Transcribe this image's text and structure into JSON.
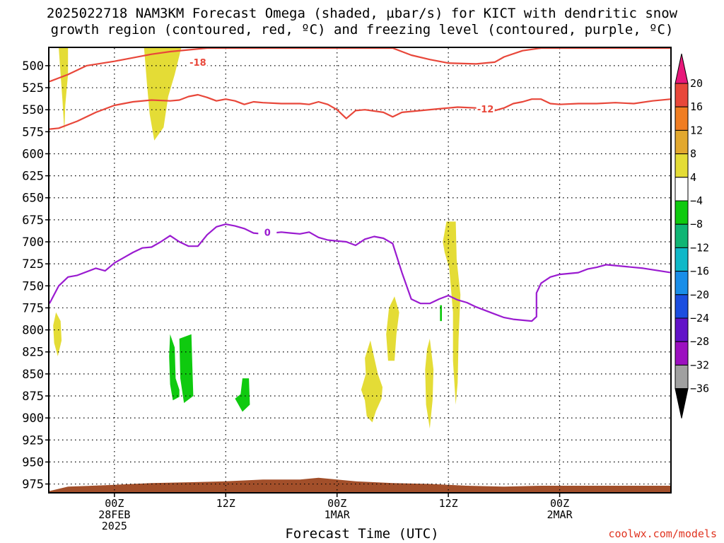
{
  "title_line1": "2025022718 NAM3KM Forecast Omega (shaded, µbar/s) for KICT with dendritic snow",
  "title_line2": "growth region (contoured, red, ºC) and freezing level (contoured, purple, ºC)",
  "chart_data": {
    "type": "heatmap",
    "xlabel": "Forecast Time (UTC)",
    "x_range_hours": [
      -7,
      60
    ],
    "x_ticks": [
      {
        "hour": 0,
        "lines": [
          "00Z",
          "28FEB",
          "2025"
        ]
      },
      {
        "hour": 12,
        "lines": [
          "12Z"
        ]
      },
      {
        "hour": 24,
        "lines": [
          "00Z",
          "1MAR"
        ]
      },
      {
        "hour": 36,
        "lines": [
          "12Z"
        ]
      },
      {
        "hour": 48,
        "lines": [
          "00Z",
          "2MAR"
        ]
      }
    ],
    "y_axis": "pressure_mb",
    "y_range": [
      480,
      985
    ],
    "y_ticks": [
      500,
      525,
      550,
      575,
      600,
      625,
      650,
      675,
      700,
      725,
      750,
      775,
      800,
      825,
      850,
      875,
      900,
      925,
      950,
      975
    ],
    "grid": true,
    "contours": [
      {
        "name": "-18",
        "color": "#e8473a",
        "label_at": [
          9.0,
          496
        ],
        "points": [
          [
            -7,
            518
          ],
          [
            -5,
            510
          ],
          [
            -3,
            500
          ],
          [
            0,
            495
          ],
          [
            2,
            491
          ],
          [
            4,
            487
          ],
          [
            6,
            484
          ],
          [
            8,
            482
          ],
          [
            10,
            480
          ],
          [
            30,
            480
          ],
          [
            32,
            488
          ],
          [
            34,
            493
          ],
          [
            36,
            497
          ],
          [
            39,
            498
          ],
          [
            41,
            496
          ],
          [
            42,
            490
          ],
          [
            44,
            483
          ],
          [
            46,
            480
          ],
          [
            60,
            480
          ]
        ]
      },
      {
        "name": "-12",
        "color": "#e8473a",
        "label_at": [
          40.0,
          549
        ],
        "points": [
          [
            -7,
            572
          ],
          [
            -6,
            571
          ],
          [
            -4,
            563
          ],
          [
            -2,
            553
          ],
          [
            0,
            545
          ],
          [
            2,
            541
          ],
          [
            4,
            539
          ],
          [
            6,
            540
          ],
          [
            7,
            539
          ],
          [
            8,
            535
          ],
          [
            9,
            533
          ],
          [
            10,
            536
          ],
          [
            11,
            540
          ],
          [
            12,
            538
          ],
          [
            13,
            540
          ],
          [
            14,
            544
          ],
          [
            15,
            541
          ],
          [
            16,
            542
          ],
          [
            18,
            543
          ],
          [
            20,
            543
          ],
          [
            21,
            544
          ],
          [
            22,
            541
          ],
          [
            23,
            544
          ],
          [
            24,
            550
          ],
          [
            25,
            560
          ],
          [
            26,
            551
          ],
          [
            27,
            550
          ],
          [
            29,
            553
          ],
          [
            30,
            558
          ],
          [
            31,
            553
          ],
          [
            33,
            551
          ],
          [
            35,
            549
          ],
          [
            37,
            547
          ],
          [
            39,
            548
          ],
          [
            41,
            551
          ],
          [
            42,
            548
          ],
          [
            43,
            543
          ],
          [
            44,
            541
          ],
          [
            45,
            538
          ],
          [
            46,
            538
          ],
          [
            47,
            543
          ],
          [
            48,
            544
          ],
          [
            50,
            543
          ],
          [
            52,
            543
          ],
          [
            54,
            542
          ],
          [
            56,
            543
          ],
          [
            58,
            540
          ],
          [
            60,
            538
          ]
        ]
      },
      {
        "name": "0",
        "color": "#9a1bd0",
        "label_at": [
          16.5,
          689
        ],
        "points": [
          [
            -7,
            770
          ],
          [
            -6,
            750
          ],
          [
            -5,
            740
          ],
          [
            -4,
            738
          ],
          [
            -2,
            730
          ],
          [
            -1,
            733
          ],
          [
            0,
            724
          ],
          [
            1,
            718
          ],
          [
            2,
            712
          ],
          [
            3,
            707
          ],
          [
            4,
            706
          ],
          [
            5,
            700
          ],
          [
            6,
            693
          ],
          [
            7,
            700
          ],
          [
            8,
            705
          ],
          [
            9,
            705
          ],
          [
            10,
            692
          ],
          [
            11,
            683
          ],
          [
            12,
            680
          ],
          [
            13,
            682
          ],
          [
            14,
            685
          ],
          [
            15,
            690
          ],
          [
            16,
            691
          ],
          [
            17,
            690
          ],
          [
            18,
            689
          ],
          [
            19,
            690
          ],
          [
            20,
            691
          ],
          [
            21,
            689
          ],
          [
            22,
            695
          ],
          [
            23,
            698
          ],
          [
            24,
            699
          ],
          [
            25,
            700
          ],
          [
            26,
            704
          ],
          [
            27,
            697
          ],
          [
            28,
            694
          ],
          [
            29,
            696
          ],
          [
            30,
            702
          ],
          [
            31,
            735
          ],
          [
            32,
            765
          ],
          [
            33,
            770
          ],
          [
            34,
            770
          ],
          [
            35,
            765
          ],
          [
            36,
            761
          ],
          [
            37,
            766
          ],
          [
            38,
            769
          ],
          [
            39,
            774
          ],
          [
            40,
            778
          ],
          [
            41,
            782
          ],
          [
            42,
            786
          ],
          [
            43,
            788
          ],
          [
            44,
            789
          ],
          [
            45,
            790
          ],
          [
            45.5,
            785
          ],
          [
            45.5,
            758
          ],
          [
            46,
            747
          ],
          [
            47,
            740
          ],
          [
            48,
            737
          ],
          [
            50,
            735
          ],
          [
            51,
            731
          ],
          [
            52,
            729
          ],
          [
            53,
            726
          ],
          [
            55,
            728
          ],
          [
            57,
            730
          ],
          [
            60,
            735
          ]
        ]
      }
    ],
    "contour_labels": [
      "-18",
      "-12",
      "0"
    ],
    "shaded_regions": [
      {
        "omega_class": "4 to 8",
        "color": "#e4dc36",
        "points": [
          [
            -6,
            480
          ],
          [
            -5,
            480
          ],
          [
            -5,
            510
          ],
          [
            -5.3,
            545
          ],
          [
            -5.4,
            575
          ],
          [
            -5.6,
            540
          ],
          [
            -5.8,
            510
          ]
        ]
      },
      {
        "omega_class": "4 to 8",
        "color": "#e4dc36",
        "points": [
          [
            3.2,
            480
          ],
          [
            7.2,
            480
          ],
          [
            6.5,
            510
          ],
          [
            5.8,
            535
          ],
          [
            5.3,
            570
          ],
          [
            4.3,
            585
          ],
          [
            3.8,
            555
          ],
          [
            3.5,
            520
          ]
        ]
      },
      {
        "omega_class": "4 to 8",
        "color": "#e4dc36",
        "points": [
          [
            -6.3,
            780
          ],
          [
            -5.8,
            790
          ],
          [
            -5.7,
            812
          ],
          [
            -6.1,
            830
          ],
          [
            -6.5,
            815
          ],
          [
            -6.6,
            795
          ]
        ]
      },
      {
        "omega_class": "4 to 8",
        "color": "#e4dc36",
        "points": [
          [
            27.6,
            812
          ],
          [
            28.4,
            850
          ],
          [
            28.9,
            865
          ],
          [
            28.8,
            878
          ],
          [
            28.2,
            892
          ],
          [
            27.8,
            905
          ],
          [
            27.2,
            898
          ],
          [
            27.0,
            880
          ],
          [
            26.6,
            868
          ],
          [
            27.1,
            850
          ],
          [
            27.0,
            832
          ]
        ]
      },
      {
        "omega_class": "4 to 8",
        "color": "#e4dc36",
        "points": [
          [
            30.2,
            762
          ],
          [
            30.7,
            780
          ],
          [
            30.4,
            805
          ],
          [
            30.2,
            835
          ],
          [
            29.5,
            835
          ],
          [
            29.3,
            805
          ],
          [
            29.6,
            775
          ]
        ]
      },
      {
        "omega_class": "4 to 8",
        "color": "#e4dc36",
        "points": [
          [
            34.0,
            810
          ],
          [
            34.4,
            845
          ],
          [
            34.3,
            880
          ],
          [
            34.0,
            912
          ],
          [
            33.6,
            885
          ],
          [
            33.5,
            845
          ],
          [
            33.7,
            822
          ]
        ]
      },
      {
        "omega_class": "4 to 8",
        "color": "#e4dc36",
        "points": [
          [
            35.8,
            677
          ],
          [
            36.8,
            677
          ],
          [
            36.9,
            720
          ],
          [
            37.3,
            760
          ],
          [
            37.1,
            810
          ],
          [
            37.0,
            860
          ],
          [
            36.8,
            885
          ],
          [
            36.5,
            835
          ],
          [
            36.5,
            780
          ],
          [
            36.1,
            730
          ],
          [
            35.6,
            712
          ],
          [
            35.4,
            700
          ]
        ]
      },
      {
        "omega_class": "-4 to -8",
        "color": "#0fca0f",
        "points": [
          [
            6.0,
            805
          ],
          [
            6.5,
            820
          ],
          [
            6.6,
            855
          ],
          [
            7.0,
            868
          ],
          [
            7.0,
            876
          ],
          [
            6.3,
            880
          ],
          [
            6.0,
            862
          ],
          [
            5.9,
            830
          ]
        ]
      },
      {
        "omega_class": "-4 to -8",
        "color": "#0fca0f",
        "points": [
          [
            7.0,
            810
          ],
          [
            8.3,
            805
          ],
          [
            8.4,
            840
          ],
          [
            8.5,
            875
          ],
          [
            7.5,
            883
          ],
          [
            7.1,
            855
          ]
        ]
      },
      {
        "omega_class": "-4 to -8",
        "color": "#0fca0f",
        "points": [
          [
            13.8,
            855
          ],
          [
            14.5,
            855
          ],
          [
            14.6,
            885
          ],
          [
            13.8,
            893
          ],
          [
            13.0,
            878
          ],
          [
            13.6,
            873
          ]
        ]
      },
      {
        "omega_class": "-4 to -8",
        "color": "#0fca0f",
        "points": [
          [
            35.1,
            772
          ],
          [
            35.3,
            772
          ],
          [
            35.3,
            790
          ],
          [
            35.1,
            790
          ]
        ]
      }
    ],
    "terrain": {
      "name": "surface",
      "color": "#a24f2a",
      "points": [
        [
          -7,
          983
        ],
        [
          -5,
          978
        ],
        [
          0,
          976
        ],
        [
          4,
          974
        ],
        [
          8,
          973
        ],
        [
          12,
          972
        ],
        [
          16,
          970
        ],
        [
          20,
          970
        ],
        [
          22,
          968
        ],
        [
          24,
          970
        ],
        [
          26,
          972
        ],
        [
          30,
          974
        ],
        [
          34,
          975
        ],
        [
          38,
          977
        ],
        [
          42,
          978
        ],
        [
          46,
          977
        ],
        [
          50,
          977
        ],
        [
          54,
          977
        ],
        [
          60,
          977
        ]
      ]
    },
    "colorbar": {
      "labels": [
        "20",
        "16",
        "12",
        "8",
        "4",
        "−4",
        "−8",
        "−12",
        "−16",
        "−20",
        "−24",
        "−28",
        "−32",
        "−36"
      ],
      "colors": [
        "#e8187a",
        "#e8473a",
        "#f07d22",
        "#e2a82e",
        "#e4dc36",
        "#ffffff",
        "#0fca0f",
        "#10b574",
        "#10b8c8",
        "#1a8ee8",
        "#1c4ee0",
        "#6212c8",
        "#9c10c0",
        "#a0a0a0",
        "#000000"
      ]
    }
  },
  "credit": "coolwx.com/models"
}
